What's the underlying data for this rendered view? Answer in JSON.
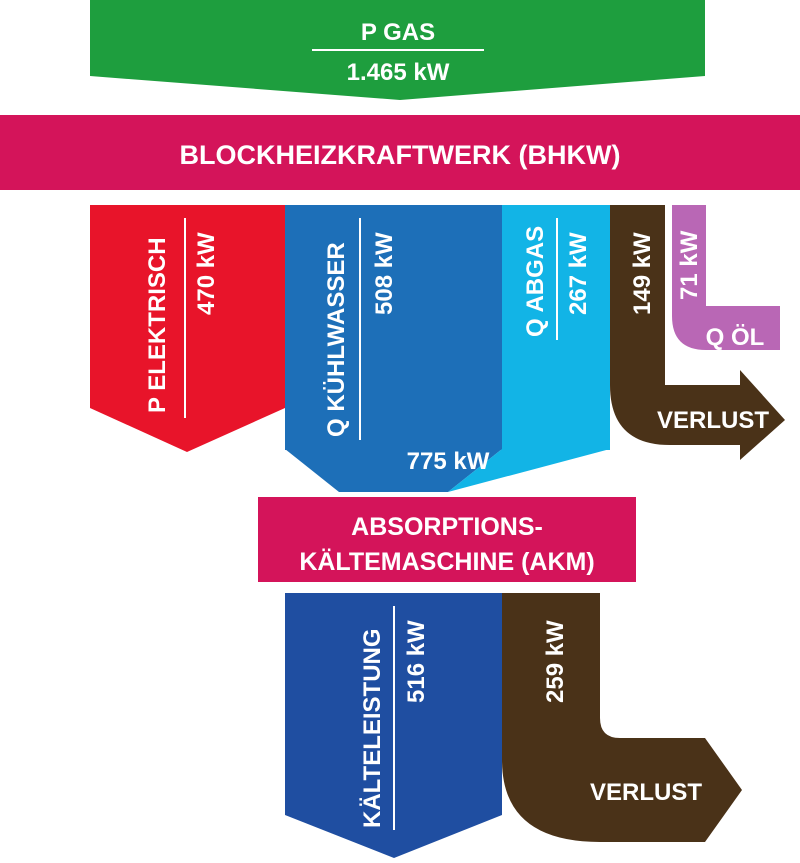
{
  "gas": {
    "label": "P GAS",
    "value": "1.465 kW"
  },
  "bhkw": {
    "label": "BLOCKHEIZKRAFTWERK (BHKW)"
  },
  "elektrisch": {
    "label": "P ELEKTRISCH",
    "value": "470 kW"
  },
  "kuehlwasser": {
    "label": "Q KÜHLWASSER",
    "value": "508 kW"
  },
  "abgas": {
    "label": "Q ABGAS",
    "value": "267 kW"
  },
  "verlust1": {
    "value": "149 kW",
    "label": "VERLUST"
  },
  "oel": {
    "value": "71 kW",
    "label": "Q ÖL"
  },
  "combined": {
    "value": "775 kW"
  },
  "akm": {
    "line1": "ABSORPTIONS-",
    "line2": "KÄLTEMASCHINE (AKM)"
  },
  "kaelte": {
    "label": "KÄLTELEISTUNG",
    "value": "516 kW"
  },
  "verlust2": {
    "value": "259 kW",
    "label": "VERLUST"
  },
  "colors": {
    "gas": "#1e9e3e",
    "bhkw": "#d4145a",
    "elektrisch": "#e8142a",
    "kuehlwasser": "#1d6fb8",
    "abgas": "#12b4e6",
    "verlust": "#4a3218",
    "oel": "#b967b5",
    "kaelte": "#1f4ea1"
  }
}
